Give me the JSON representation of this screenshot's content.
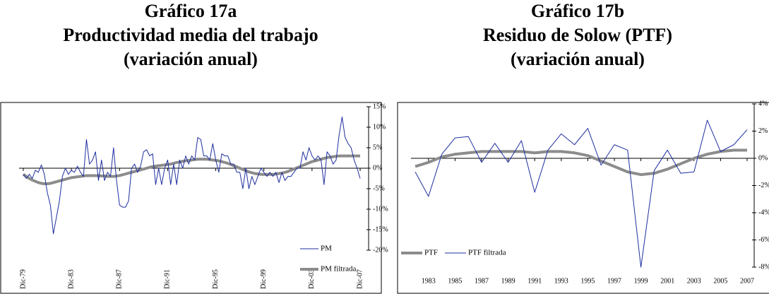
{
  "chart_data": [
    {
      "type": "line",
      "title": [
        "Gráfico 17a",
        "Productividad media del trabajo",
        "(variación anual)"
      ],
      "categories": [
        "Dic-79",
        null,
        null,
        null,
        null,
        null,
        null,
        null,
        null,
        null,
        null,
        null,
        null,
        null,
        null,
        null,
        "Dic-83",
        null,
        null,
        null,
        null,
        null,
        null,
        null,
        null,
        null,
        null,
        null,
        null,
        null,
        null,
        null,
        "Dic-87",
        null,
        null,
        null,
        null,
        null,
        null,
        null,
        null,
        null,
        null,
        null,
        null,
        null,
        null,
        null,
        "Dic-91",
        null,
        null,
        null,
        null,
        null,
        null,
        null,
        null,
        null,
        null,
        null,
        null,
        null,
        null,
        null,
        "Dic-95",
        null,
        null,
        null,
        null,
        null,
        null,
        null,
        null,
        null,
        null,
        null,
        null,
        null,
        null,
        null,
        "Dic-99",
        null,
        null,
        null,
        null,
        null,
        null,
        null,
        null,
        null,
        null,
        null,
        null,
        null,
        null,
        null,
        "Dic-03",
        null,
        null,
        null,
        null,
        null,
        null,
        null,
        null,
        null,
        null,
        null,
        null,
        null,
        null,
        null,
        "Dic-07"
      ],
      "series": [
        {
          "name": "PM",
          "color": "#1f2fa0",
          "width": 1,
          "values": [
            -1.5,
            -2.5,
            -1.5,
            -2.5,
            -0.5,
            -1,
            0.8,
            -1.5,
            -6,
            -9,
            -16,
            -12,
            -8,
            -2,
            0,
            -1.5,
            -0.5,
            -1,
            0.5,
            -1,
            -2,
            7,
            1,
            2,
            4,
            -3,
            2,
            -3,
            -1,
            -2,
            5,
            -3,
            -9,
            -9.5,
            -9.5,
            -8,
            0,
            1,
            -1,
            0.5,
            4,
            4.5,
            3,
            3.5,
            -4,
            0,
            -4,
            0,
            2,
            -4,
            1,
            -4,
            2,
            0,
            3,
            1,
            3,
            2,
            7.5,
            7,
            3,
            3,
            2,
            6,
            2,
            -1,
            3.5,
            3,
            3,
            1,
            1,
            -1,
            -1,
            -5,
            0,
            -5,
            -2,
            -4,
            -2,
            0,
            -1,
            -2,
            -1,
            -2,
            -1,
            -3.5,
            -1,
            -3,
            -2,
            -2,
            -1,
            0,
            0,
            4,
            2,
            5,
            3,
            2,
            3,
            2,
            -4,
            4,
            3,
            1,
            2,
            8,
            12.5,
            7.5,
            6,
            5,
            2,
            0,
            -2.5
          ]
        },
        {
          "name": "PM filtrada",
          "color": "#8c8c8c",
          "width": 4,
          "values": [
            -1.5,
            -2,
            -2.5,
            -2.9,
            -3.2,
            -3.5,
            -3.7,
            -3.8,
            -3.8,
            -3.7,
            -3.5,
            -3.3,
            -3.1,
            -2.9,
            -2.7,
            -2.5,
            -2.3,
            -2.2,
            -2.1,
            -2,
            -1.9,
            -1.8,
            -1.8,
            -1.8,
            -1.8,
            -1.8,
            -1.9,
            -1.9,
            -2,
            -2,
            -2,
            -1.9,
            -1.8,
            -1.6,
            -1.4,
            -1.2,
            -1,
            -0.8,
            -0.6,
            -0.4,
            -0.2,
            0,
            0.2,
            0.4,
            0.5,
            0.6,
            0.7,
            0.8,
            0.9,
            1,
            1.2,
            1.4,
            1.5,
            1.7,
            1.8,
            1.9,
            2,
            2.1,
            2.2,
            2.2,
            2.2,
            2.2,
            2.1,
            2,
            1.9,
            1.8,
            1.6,
            1.4,
            1.2,
            0.9,
            0.6,
            0.3,
            0,
            -0.3,
            -0.6,
            -0.9,
            -1.1,
            -1.3,
            -1.4,
            -1.5,
            -1.5,
            -1.5,
            -1.5,
            -1.5,
            -1.4,
            -1.3,
            -1.2,
            -1,
            -0.8,
            -0.5,
            -0.2,
            0.1,
            0.4,
            0.7,
            1,
            1.3,
            1.6,
            1.8,
            2,
            2.2,
            2.4,
            2.6,
            2.7,
            2.8,
            2.9,
            3,
            3,
            3,
            3,
            3,
            3,
            3,
            3
          ]
        }
      ],
      "ylim": [
        -20,
        15
      ],
      "yticks": [
        {
          "value": -20,
          "label": "-20%"
        },
        {
          "value": -15,
          "label": "-15%"
        },
        {
          "value": -10,
          "label": "-10%"
        },
        {
          "value": -5,
          "label": "-5%"
        },
        {
          "value": 0,
          "label": "0%"
        },
        {
          "value": 5,
          "label": "5%"
        },
        {
          "value": 10,
          "label": "10%"
        },
        {
          "value": 15,
          "label": "15%"
        }
      ],
      "legend": "lower-right"
    },
    {
      "type": "line",
      "title": [
        "Gráfico 17b",
        "Residuo de Solow (PTF)",
        "(variación anual)"
      ],
      "x": [
        1982,
        1983,
        1984,
        1985,
        1986,
        1987,
        1988,
        1989,
        1990,
        1991,
        1992,
        1993,
        1994,
        1995,
        1996,
        1997,
        1998,
        1999,
        2000,
        2001,
        2002,
        2003,
        2004,
        2005,
        2006,
        2007
      ],
      "xlim": [
        1981.5,
        2008
      ],
      "xticks": [
        1983,
        1985,
        1987,
        1989,
        1991,
        1993,
        1995,
        1997,
        1999,
        2001,
        2003,
        2005,
        2007
      ],
      "series": [
        {
          "name": "PTF",
          "color": "#8c8c8c",
          "width": 4,
          "values": [
            -0.6,
            -0.3,
            0.1,
            0.3,
            0.4,
            0.5,
            0.5,
            0.5,
            0.5,
            0.4,
            0.5,
            0.5,
            0.4,
            0.2,
            -0.2,
            -0.6,
            -1,
            -1.2,
            -1.1,
            -0.8,
            -0.4,
            0,
            0.3,
            0.5,
            0.6,
            0.6
          ]
        },
        {
          "name": "PTF filtrada",
          "color": "#1f2fa0",
          "width": 1,
          "values": [
            -1,
            -2.8,
            0.3,
            1.5,
            1.6,
            -0.3,
            1.1,
            -0.3,
            1.3,
            -2.5,
            0.6,
            1.8,
            1,
            2.2,
            -0.5,
            1,
            0.6,
            -8,
            -0.9,
            0.6,
            -1.1,
            -1,
            2.8,
            0.5,
            1,
            2.1
          ]
        }
      ],
      "ylim": [
        -8,
        4
      ],
      "yticks": [
        {
          "value": -8,
          "label": "-8%"
        },
        {
          "value": -6,
          "label": "-6%"
        },
        {
          "value": -4,
          "label": "-4%"
        },
        {
          "value": -2,
          "label": "-2%"
        },
        {
          "value": 0,
          "label": "0%"
        },
        {
          "value": 2,
          "label": "2%"
        },
        {
          "value": 4,
          "label": "4%"
        }
      ],
      "legend": "lower-left"
    }
  ]
}
